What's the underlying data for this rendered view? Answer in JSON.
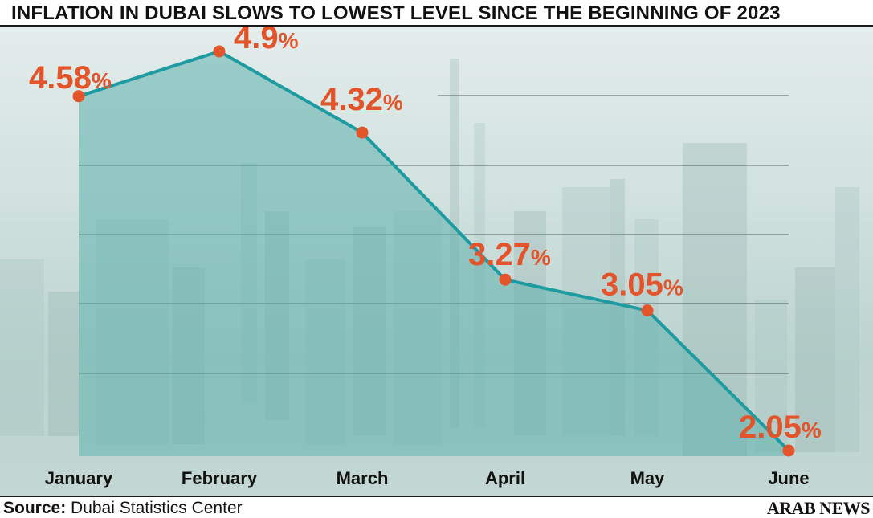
{
  "header": {
    "title": "INFLATION IN DUBAI SLOWS TO LOWEST LEVEL SINCE THE BEGINNING OF 2023"
  },
  "footer": {
    "source_label": "Source:",
    "source_text": " Dubai Statistics Center",
    "brand": "ARAB NEWS"
  },
  "colors": {
    "line": "#1e9ba1",
    "area": "#5fb0ad",
    "marker": "#e4542a",
    "label": "#e4542a",
    "gridline": "#2b3a3a"
  },
  "chart_data": {
    "type": "area",
    "categories": [
      "January",
      "February",
      "March",
      "April",
      "May",
      "June"
    ],
    "values": [
      4.58,
      4.9,
      4.32,
      3.27,
      3.05,
      2.05
    ],
    "data_labels": [
      "4.58",
      "4.9",
      "4.32",
      "3.27",
      "3.05",
      "2.05"
    ],
    "unit": "%",
    "title": "INFLATION IN DUBAI SLOWS TO LOWEST LEVEL SINCE THE BEGINNING OF 2023",
    "xlabel": "",
    "ylabel": "",
    "grid": true,
    "legend": "none"
  }
}
